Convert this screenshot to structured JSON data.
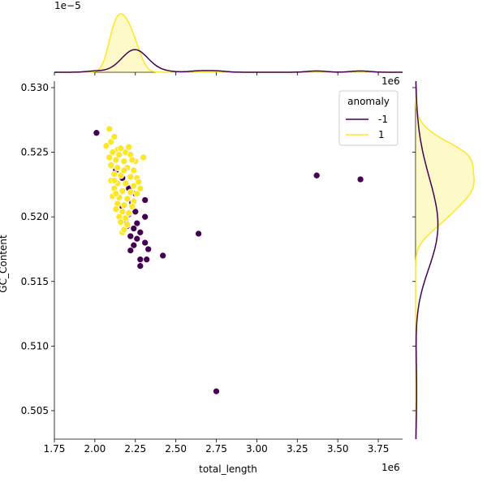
{
  "chart_data": {
    "type": "scatter",
    "title": "",
    "xlabel": "total_length",
    "ylabel": "GC_Content",
    "x_offset_label": "1e6",
    "y_offset_label": "",
    "xlim": [
      1.75,
      3.9
    ],
    "ylim": [
      0.5028,
      0.5305
    ],
    "x_ticks": [
      1.75,
      2.0,
      2.25,
      2.5,
      2.75,
      3.0,
      3.25,
      3.5,
      3.75
    ],
    "x_tick_labels": [
      "1.75",
      "2.00",
      "2.25",
      "2.50",
      "2.75",
      "3.00",
      "3.25",
      "3.50",
      "3.75"
    ],
    "y_ticks": [
      0.505,
      0.51,
      0.515,
      0.52,
      0.525,
      0.53
    ],
    "y_tick_labels": [
      "0.505",
      "0.510",
      "0.515",
      "0.520",
      "0.525",
      "0.530"
    ],
    "top_marginal_offset_label": "1e−5",
    "right_marginal_offset_label": "1e6",
    "legend": {
      "title": "anomaly",
      "position": "top-right",
      "entries": [
        {
          "label": "-1",
          "color": "#440154"
        },
        {
          "label": "1",
          "color": "#fde725"
        }
      ]
    },
    "series": [
      {
        "name": "-1",
        "color": "#440154",
        "points": [
          [
            2.01,
            0.5265
          ],
          [
            2.21,
            0.5222
          ],
          [
            2.25,
            0.5218
          ],
          [
            2.31,
            0.5213
          ],
          [
            2.23,
            0.5211
          ],
          [
            2.25,
            0.5204
          ],
          [
            2.31,
            0.52
          ],
          [
            2.19,
            0.5198
          ],
          [
            2.26,
            0.5195
          ],
          [
            2.2,
            0.5193
          ],
          [
            2.24,
            0.5191
          ],
          [
            2.28,
            0.5188
          ],
          [
            2.22,
            0.5185
          ],
          [
            2.26,
            0.5183
          ],
          [
            2.31,
            0.518
          ],
          [
            2.24,
            0.5178
          ],
          [
            2.22,
            0.5174
          ],
          [
            2.33,
            0.5175
          ],
          [
            2.42,
            0.517
          ],
          [
            2.28,
            0.5167
          ],
          [
            2.32,
            0.5167
          ],
          [
            2.28,
            0.5162
          ],
          [
            2.64,
            0.5187
          ],
          [
            3.37,
            0.5232
          ],
          [
            3.64,
            0.5229
          ],
          [
            2.75,
            0.5065
          ],
          [
            2.17,
            0.523
          ],
          [
            2.13,
            0.5236
          ],
          [
            2.21,
            0.5202
          ],
          [
            2.17,
            0.5208
          ]
        ]
      },
      {
        "name": "1",
        "color": "#fde725",
        "points": [
          [
            2.09,
            0.5268
          ],
          [
            2.1,
            0.5258
          ],
          [
            2.12,
            0.5262
          ],
          [
            2.07,
            0.5255
          ],
          [
            2.14,
            0.5252
          ],
          [
            2.11,
            0.525
          ],
          [
            2.16,
            0.5253
          ],
          [
            2.19,
            0.525
          ],
          [
            2.22,
            0.5248
          ],
          [
            2.09,
            0.5246
          ],
          [
            2.13,
            0.5244
          ],
          [
            2.18,
            0.5243
          ],
          [
            2.25,
            0.5243
          ],
          [
            2.3,
            0.5246
          ],
          [
            2.1,
            0.524
          ],
          [
            2.14,
            0.5238
          ],
          [
            2.2,
            0.5238
          ],
          [
            2.24,
            0.5236
          ],
          [
            2.12,
            0.5233
          ],
          [
            2.16,
            0.5232
          ],
          [
            2.22,
            0.5231
          ],
          [
            2.26,
            0.523
          ],
          [
            2.1,
            0.5228
          ],
          [
            2.14,
            0.5226
          ],
          [
            2.19,
            0.5226
          ],
          [
            2.24,
            0.5224
          ],
          [
            2.12,
            0.5222
          ],
          [
            2.17,
            0.522
          ],
          [
            2.22,
            0.5219
          ],
          [
            2.26,
            0.5218
          ],
          [
            2.11,
            0.5216
          ],
          [
            2.15,
            0.5215
          ],
          [
            2.2,
            0.5214
          ],
          [
            2.24,
            0.5212
          ],
          [
            2.14,
            0.521
          ],
          [
            2.18,
            0.5209
          ],
          [
            2.23,
            0.5208
          ],
          [
            2.13,
            0.5206
          ],
          [
            2.17,
            0.5204
          ],
          [
            2.21,
            0.5203
          ],
          [
            2.15,
            0.52
          ],
          [
            2.19,
            0.5199
          ],
          [
            2.16,
            0.5196
          ],
          [
            2.2,
            0.5194
          ],
          [
            2.17,
            0.5188
          ],
          [
            2.18,
            0.519
          ],
          [
            2.13,
            0.5218
          ],
          [
            2.27,
            0.5227
          ],
          [
            2.28,
            0.5222
          ],
          [
            2.15,
            0.5248
          ],
          [
            2.21,
            0.5254
          ],
          [
            2.18,
            0.5236
          ],
          [
            2.23,
            0.5244
          ],
          [
            2.12,
            0.5228
          ]
        ]
      }
    ]
  }
}
